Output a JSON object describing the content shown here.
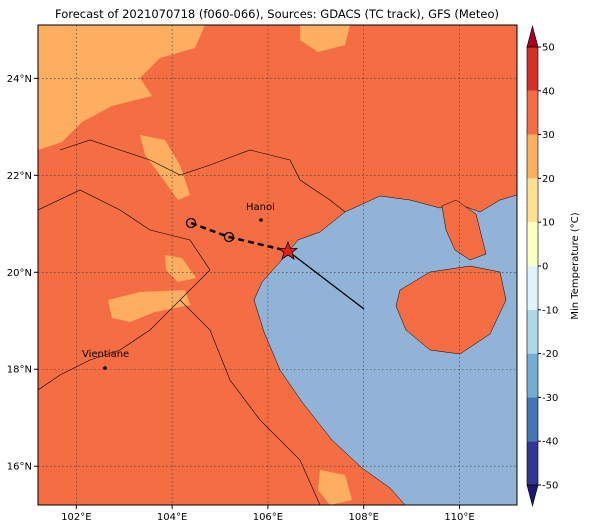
{
  "title": "Forecast of 2021070718 (f060-066), Sources: GDACS (TC track), GFS (Meteo)",
  "map": {
    "xticks": [
      {
        "value": 102,
        "label": "102°E"
      },
      {
        "value": 104,
        "label": "104°E"
      },
      {
        "value": 106,
        "label": "106°E"
      },
      {
        "value": 108,
        "label": "108°E"
      },
      {
        "value": 110,
        "label": "110°E"
      }
    ],
    "yticks": [
      {
        "value": 16,
        "label": "16°N"
      },
      {
        "value": 18,
        "label": "18°N"
      },
      {
        "value": 20,
        "label": "20°N"
      },
      {
        "value": 22,
        "label": "22°N"
      },
      {
        "value": 24,
        "label": "24°N"
      }
    ],
    "xlim": [
      101.2,
      111.2
    ],
    "ylim": [
      15.2,
      25.1
    ],
    "cities": [
      {
        "name": "Hanoi"
      },
      {
        "name": "Vientiane"
      }
    ],
    "grid": true
  },
  "colorbar": {
    "label": "Min Temperature (°C)",
    "lim": [
      -50,
      50
    ],
    "ticks": [
      -50,
      -40,
      -30,
      -20,
      -10,
      0,
      10,
      20,
      30,
      40,
      50
    ],
    "colors": [
      "#313695",
      "#4575b4",
      "#74add1",
      "#abd9e9",
      "#e0f3f8",
      "#ffffbf",
      "#fee090",
      "#fdae61",
      "#f46d43",
      "#d73027"
    ],
    "under": "#1a1a6e",
    "over": "#a50026"
  }
}
